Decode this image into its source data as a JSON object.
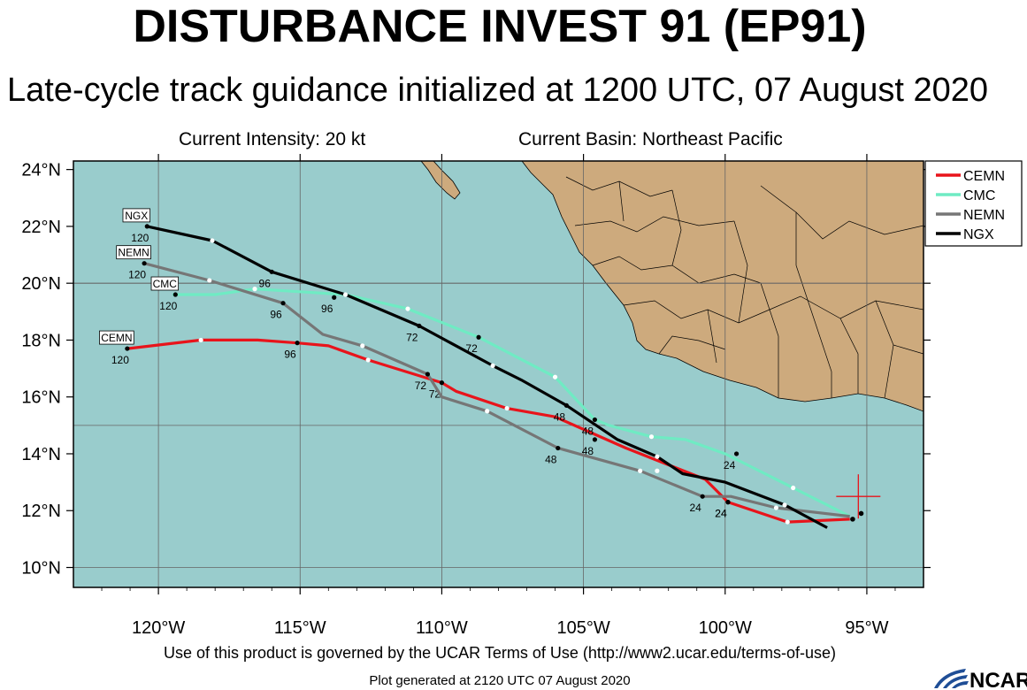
{
  "header": {
    "title": "DISTURBANCE INVEST 91 (EP91)",
    "subtitle": "Late-cycle track guidance initialized at 1200 UTC, 07 August 2020",
    "intensity": "Current Intensity: 20 kt",
    "basin": "Current Basin: Northeast Pacific"
  },
  "footer": {
    "terms": "Use of this product is governed by the UCAR Terms of Use (http://www2.ucar.edu/terms-of-use)",
    "generated": "Plot generated at 2120 UTC   07 August 2020",
    "logo_text": "NCAR"
  },
  "colors": {
    "ocean": "#99CCCC",
    "land": "#CDAA7D",
    "CEMN": "#E8141B",
    "CMC": "#6FEBC3",
    "NEMN": "#767676",
    "NGX": "#000000",
    "current_position": "#E8141B"
  },
  "map": {
    "lon_range": [
      -123,
      -93
    ],
    "lat_range": [
      9.3,
      24.3
    ],
    "lat_labels": [
      "10°N",
      "12°N",
      "14°N",
      "16°N",
      "18°N",
      "20°N",
      "22°N",
      "24°N"
    ],
    "lon_labels": [
      "120°W",
      "115°W",
      "110°W",
      "105°W",
      "100°W",
      "95°W"
    ],
    "current_position": {
      "lon": -95.3,
      "lat": 12.5
    },
    "legend": [
      "CEMN",
      "CMC",
      "NEMN",
      "NGX"
    ]
  },
  "chart_data": {
    "type": "map-tracks",
    "title": "DISTURBANCE INVEST 91 (EP91)",
    "tracks": [
      {
        "name": "CEMN",
        "points": [
          [
            -95.6,
            11.7
          ],
          [
            -97.8,
            11.6
          ],
          [
            -99.9,
            12.3
          ],
          [
            -100.7,
            13.1
          ],
          [
            -103.5,
            14.2
          ],
          [
            -106.0,
            15.3
          ],
          [
            -107.7,
            15.6
          ],
          [
            -109.5,
            16.2
          ],
          [
            -110.0,
            16.5
          ],
          [
            -112.6,
            17.3
          ],
          [
            -114.0,
            17.8
          ],
          [
            -115.1,
            17.9
          ],
          [
            -116.5,
            18.0
          ],
          [
            -118.5,
            18.0
          ],
          [
            -121.1,
            17.7
          ]
        ],
        "markers": [
          {
            "lon": -97.8,
            "lat": 11.6,
            "label": ""
          },
          {
            "lon": -99.9,
            "lat": 12.3,
            "label": "24"
          },
          {
            "lon": -102.4,
            "lat": 13.4,
            "label": ""
          },
          {
            "lon": -104.6,
            "lat": 14.5,
            "label": "48"
          },
          {
            "lon": -107.7,
            "lat": 15.6,
            "label": ""
          },
          {
            "lon": -110.0,
            "lat": 16.5,
            "label": "72"
          },
          {
            "lon": -112.6,
            "lat": 17.3,
            "label": ""
          },
          {
            "lon": -115.1,
            "lat": 17.9,
            "label": "96"
          },
          {
            "lon": -118.5,
            "lat": 18.0,
            "label": ""
          },
          {
            "lon": -121.1,
            "lat": 17.7,
            "label": "120"
          }
        ],
        "tag": "CEMN"
      },
      {
        "name": "CMC",
        "points": [
          [
            -95.6,
            11.8
          ],
          [
            -97.6,
            12.8
          ],
          [
            -99.0,
            13.5
          ],
          [
            -100.0,
            14.0
          ],
          [
            -101.4,
            14.5
          ],
          [
            -102.6,
            14.6
          ],
          [
            -104.1,
            15.0
          ],
          [
            -104.6,
            15.2
          ],
          [
            -106.0,
            16.7
          ],
          [
            -108.7,
            18.1
          ],
          [
            -111.2,
            19.1
          ],
          [
            -113.4,
            19.6
          ],
          [
            -115.0,
            19.7
          ],
          [
            -116.6,
            19.8
          ],
          [
            -118.0,
            19.6
          ],
          [
            -119.5,
            19.6
          ]
        ],
        "markers": [
          {
            "lon": -97.6,
            "lat": 12.8,
            "label": ""
          },
          {
            "lon": -99.6,
            "lat": 14.0,
            "label": "24"
          },
          {
            "lon": -102.6,
            "lat": 14.6,
            "label": ""
          },
          {
            "lon": -104.6,
            "lat": 15.2,
            "label": "48"
          },
          {
            "lon": -106.0,
            "lat": 16.7,
            "label": ""
          },
          {
            "lon": -108.7,
            "lat": 18.1,
            "label": "72"
          },
          {
            "lon": -111.2,
            "lat": 19.1,
            "label": ""
          },
          {
            "lon": -113.8,
            "lat": 19.5,
            "label": "96"
          },
          {
            "lon": -116.6,
            "lat": 19.8,
            "label": ""
          },
          {
            "lon": -119.4,
            "lat": 19.6,
            "label": "120"
          }
        ],
        "tag": "CMC"
      },
      {
        "name": "NEMN",
        "points": [
          [
            -95.6,
            11.8
          ],
          [
            -98.2,
            12.1
          ],
          [
            -99.8,
            12.5
          ],
          [
            -100.8,
            12.5
          ],
          [
            -103.0,
            13.4
          ],
          [
            -105.9,
            14.2
          ],
          [
            -108.4,
            15.5
          ],
          [
            -110.0,
            16.0
          ],
          [
            -110.5,
            16.8
          ],
          [
            -112.8,
            17.8
          ],
          [
            -114.2,
            18.2
          ],
          [
            -115.6,
            19.3
          ],
          [
            -118.2,
            20.1
          ],
          [
            -120.5,
            20.7
          ]
        ],
        "markers": [
          {
            "lon": -98.2,
            "lat": 12.1,
            "label": ""
          },
          {
            "lon": -100.8,
            "lat": 12.5,
            "label": "24"
          },
          {
            "lon": -103.0,
            "lat": 13.4,
            "label": ""
          },
          {
            "lon": -105.9,
            "lat": 14.2,
            "label": "48"
          },
          {
            "lon": -108.4,
            "lat": 15.5,
            "label": ""
          },
          {
            "lon": -110.5,
            "lat": 16.8,
            "label": "72"
          },
          {
            "lon": -112.8,
            "lat": 17.8,
            "label": ""
          },
          {
            "lon": -115.6,
            "lat": 19.3,
            "label": "96"
          },
          {
            "lon": -118.2,
            "lat": 20.1,
            "label": ""
          },
          {
            "lon": -120.5,
            "lat": 20.7,
            "label": "120"
          }
        ],
        "tag": "NEMN"
      },
      {
        "name": "NGX",
        "points": [
          [
            -96.4,
            11.4
          ],
          [
            -97.9,
            12.2
          ],
          [
            -100.0,
            13.0
          ],
          [
            -101.5,
            13.3
          ],
          [
            -102.4,
            13.9
          ],
          [
            -103.8,
            14.5
          ],
          [
            -105.6,
            15.7
          ],
          [
            -107.2,
            16.6
          ],
          [
            -108.2,
            17.1
          ],
          [
            -110.8,
            18.5
          ],
          [
            -113.4,
            19.6
          ],
          [
            -116.0,
            20.4
          ],
          [
            -118.1,
            21.5
          ],
          [
            -120.4,
            22.0
          ]
        ],
        "markers": [
          {
            "lon": -97.9,
            "lat": 12.2,
            "label": ""
          },
          {
            "lon": -99.9,
            "lat": 12.3,
            "label": "24"
          },
          {
            "lon": -102.4,
            "lat": 13.9,
            "label": ""
          },
          {
            "lon": -105.6,
            "lat": 15.7,
            "label": "48"
          },
          {
            "lon": -108.2,
            "lat": 17.1,
            "label": ""
          },
          {
            "lon": -110.8,
            "lat": 18.5,
            "label": "72"
          },
          {
            "lon": -113.4,
            "lat": 19.6,
            "label": ""
          },
          {
            "lon": -116.0,
            "lat": 20.4,
            "label": "96"
          },
          {
            "lon": -118.1,
            "lat": 21.5,
            "label": ""
          },
          {
            "lon": -120.4,
            "lat": 22.0,
            "label": "120"
          }
        ],
        "tag": "NGX"
      }
    ],
    "start_points": [
      [
        -95.2,
        11.9
      ],
      [
        -95.5,
        11.7
      ]
    ]
  }
}
